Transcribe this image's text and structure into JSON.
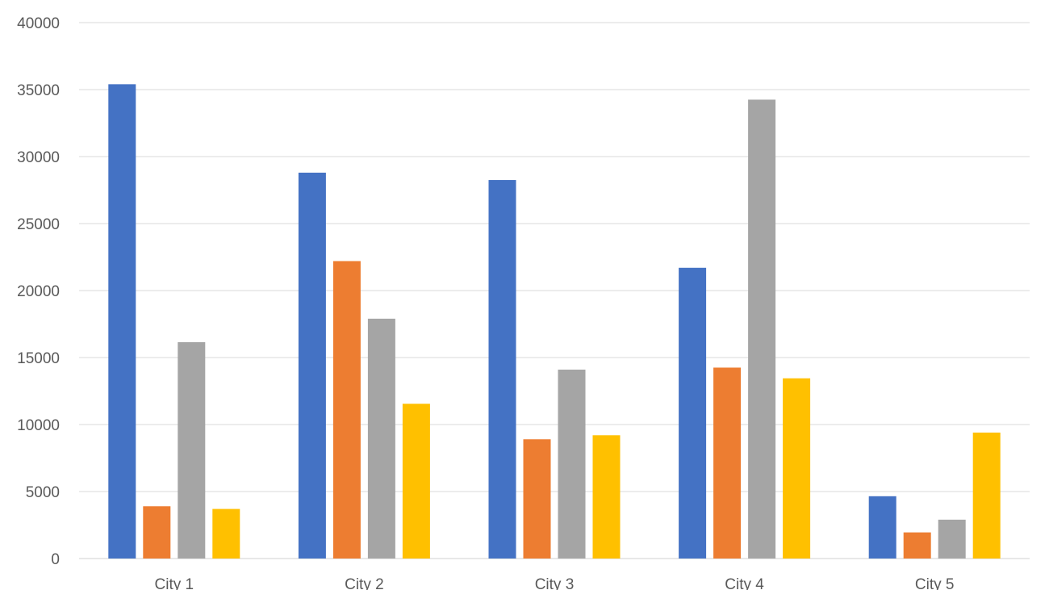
{
  "chart_data": {
    "type": "bar",
    "title": "",
    "xlabel": "",
    "ylabel": "",
    "categories": [
      "City 1",
      "City 2",
      "City 3",
      "City 4",
      "City 5"
    ],
    "ylim": [
      0,
      40000
    ],
    "yticks": [
      "0",
      "5000",
      "10000",
      "15000",
      "20000",
      "25000",
      "30000",
      "35000",
      "40000"
    ],
    "grid": true,
    "legend": "none",
    "series": [
      {
        "color": "#4472C4",
        "values": [
          35400,
          28800,
          28250,
          21700,
          4650
        ]
      },
      {
        "color": "#ED7D31",
        "values": [
          3900,
          22200,
          8900,
          14250,
          1950
        ]
      },
      {
        "color": "#A5A5A5",
        "values": [
          16150,
          17900,
          14100,
          34250,
          2900
        ]
      },
      {
        "color": "#FFC000",
        "values": [
          3700,
          11550,
          9200,
          13450,
          9400
        ]
      }
    ]
  }
}
